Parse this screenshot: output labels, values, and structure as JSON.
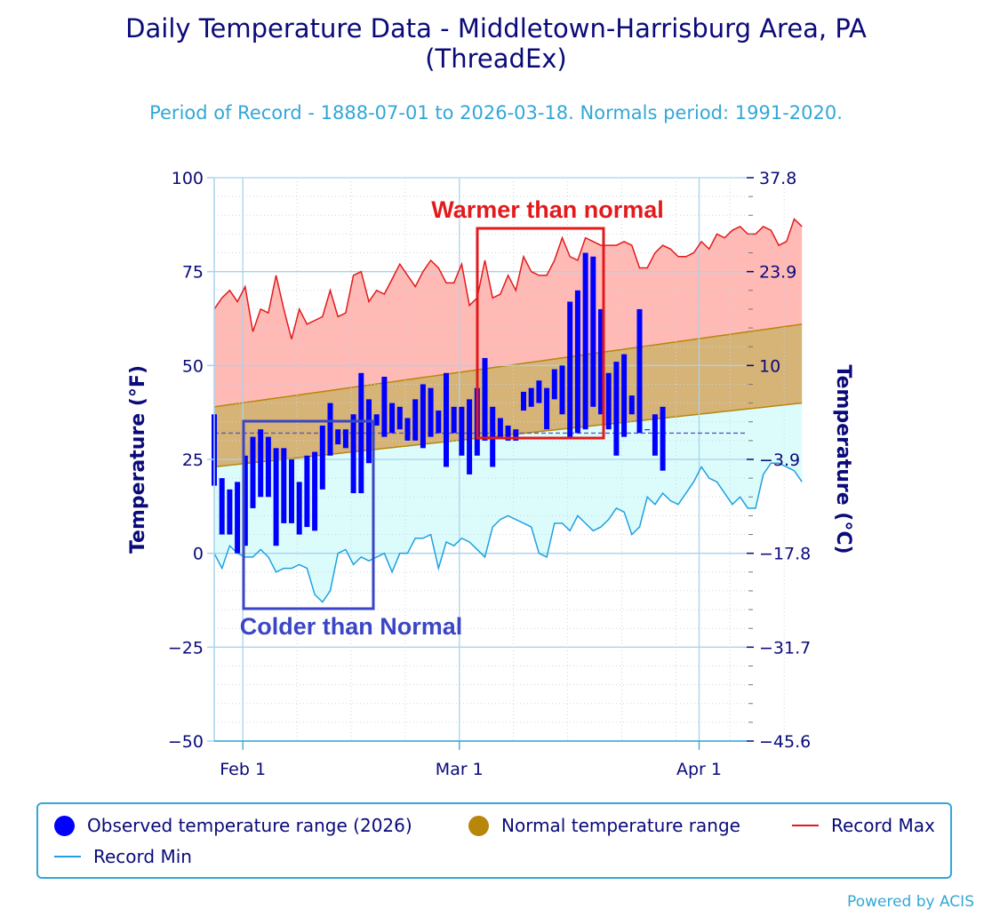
{
  "header": {
    "title_line1": "Daily Temperature Data - Middletown-Harrisburg Area, PA",
    "title_line2": "(ThreadEx)",
    "subtitle": "Period of Record - 1888-07-01 to 2026-03-18. Normals period: 1991-2020."
  },
  "chart_data": {
    "type": "range-bar",
    "y_left_label": "Temperature (°F)",
    "y_right_label": "Temperature (°C)",
    "ylim_f": [
      -50,
      100
    ],
    "y_left_ticks": [
      "100",
      "75",
      "50",
      "25",
      "0",
      "−25",
      "−50"
    ],
    "y_right_ticks": [
      "37.8",
      "23.9",
      "10",
      "−3.9",
      "−17.8",
      "−31.7",
      "−45.6"
    ],
    "x_ticks": [
      "Feb 1",
      "Mar 1",
      "Apr 1"
    ],
    "freezing_line_f": 32,
    "annotations": {
      "warm": "Warmer than normal",
      "cold": "Colder than Normal"
    },
    "series_names": {
      "observed": "Observed temperature range (2026)",
      "normal": "Normal temperature range",
      "record_max": "Record Max",
      "record_min": "Record Min"
    },
    "colors": {
      "observed": "#0000ff",
      "normal": "#b8860b",
      "record_max": "#e31a1c",
      "record_min": "#1fa0e0",
      "record_max_fill": "#ffb3ad",
      "record_min_fill": "#dcfcfc",
      "normal_fill": "#d6b377",
      "warm_box": "#e31a1c",
      "cold_box": "#3a46c6"
    },
    "observed_low": [
      18,
      5,
      5,
      0,
      2,
      12,
      15,
      15,
      2,
      8,
      8,
      5,
      7,
      6,
      17,
      26,
      29,
      28,
      16,
      16,
      24,
      34,
      31,
      32,
      33,
      30,
      30,
      28,
      31,
      32,
      23,
      32,
      26,
      21,
      26,
      30,
      23,
      31,
      30,
      30,
      38,
      39,
      40,
      33,
      41,
      37,
      31,
      32,
      33,
      39,
      37,
      33,
      26,
      31,
      37,
      32,
      33,
      26,
      22
    ],
    "observed_high": [
      37,
      20,
      17,
      19,
      26,
      31,
      33,
      31,
      28,
      28,
      25,
      19,
      26,
      27,
      34,
      40,
      33,
      33,
      37,
      48,
      41,
      37,
      47,
      40,
      39,
      36,
      41,
      45,
      44,
      38,
      48,
      39,
      39,
      41,
      44,
      52,
      39,
      36,
      34,
      33,
      43,
      44,
      46,
      44,
      49,
      50,
      67,
      70,
      80,
      79,
      65,
      48,
      51,
      53,
      42,
      65,
      33,
      37,
      39
    ],
    "record_max": [
      65,
      68,
      70,
      67,
      71,
      59,
      65,
      64,
      74,
      65,
      57,
      65,
      61,
      62,
      63,
      70,
      63,
      64,
      74,
      75,
      67,
      70,
      69,
      73,
      77,
      74,
      71,
      75,
      78,
      76,
      72,
      72,
      77,
      66,
      68,
      78,
      68,
      69,
      74,
      70,
      79,
      75,
      74,
      74,
      78,
      84,
      79,
      78,
      84,
      83,
      82,
      82,
      82,
      83,
      82,
      76,
      76,
      80,
      82,
      81,
      79,
      79,
      80,
      83,
      81,
      85,
      84,
      86,
      87,
      85,
      85,
      87,
      86,
      82,
      83,
      89,
      87
    ],
    "record_min": [
      0,
      -4,
      2,
      0,
      -1,
      -1,
      1,
      -1,
      -5,
      -4,
      -4,
      -3,
      -4,
      -11,
      -13,
      -10,
      0,
      1,
      -3,
      -1,
      -2,
      -1,
      0,
      -5,
      0,
      0,
      4,
      4,
      5,
      -4,
      3,
      2,
      4,
      3,
      1,
      -1,
      7,
      9,
      10,
      9,
      8,
      7,
      0,
      -1,
      8,
      8,
      6,
      10,
      8,
      6,
      7,
      9,
      12,
      11,
      5,
      7,
      15,
      13,
      16,
      14,
      13,
      16,
      19,
      23,
      20,
      19,
      16,
      13,
      15,
      12,
      12,
      21,
      24,
      24,
      23,
      22,
      19
    ],
    "normal_high_start": 39,
    "normal_high_end": 61,
    "normal_low_start": 23,
    "normal_low_end": 40
  },
  "legend": {
    "observed": "Observed temperature range (2026)",
    "normal": "Normal temperature range",
    "record_max": "Record Max",
    "record_min": "Record Min"
  },
  "footer": {
    "powered_by": "Powered by ACIS"
  }
}
